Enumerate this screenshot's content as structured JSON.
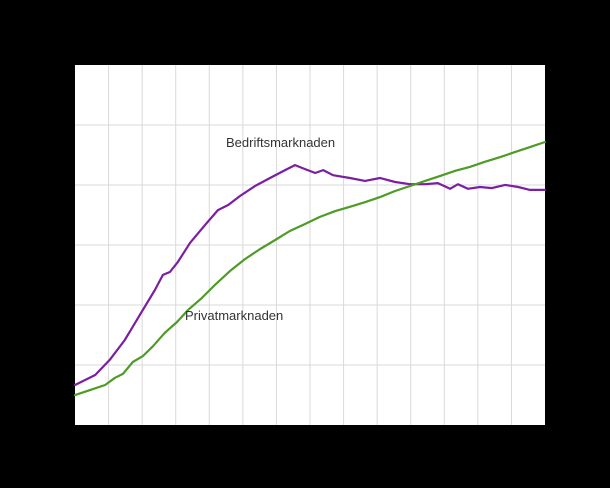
{
  "page": {
    "background_color": "#000000"
  },
  "chart_data": {
    "type": "line",
    "title": "",
    "xlabel": "",
    "ylabel": "",
    "plot_background": "#ffffff",
    "x_range": [
      0,
      100
    ],
    "y_range": [
      0,
      100
    ],
    "grid": {
      "visible": true,
      "color": "#d9d9d9",
      "v_divisions": 14,
      "h_divisions": 6
    },
    "legend_position": "inline-annotations",
    "series": [
      {
        "name": "Bedriftsmarknaden",
        "color": "#7b1fa2",
        "stroke_width": 2.2,
        "points": [
          [
            0,
            11.1
          ],
          [
            4.3,
            13.9
          ],
          [
            7.4,
            18.1
          ],
          [
            10.6,
            23.6
          ],
          [
            13.8,
            30.6
          ],
          [
            17.0,
            37.5
          ],
          [
            18.7,
            41.7
          ],
          [
            20.2,
            42.5
          ],
          [
            21.9,
            45.3
          ],
          [
            24.5,
            50.6
          ],
          [
            27.7,
            55.6
          ],
          [
            30.4,
            59.7
          ],
          [
            32.6,
            61.1
          ],
          [
            35.1,
            63.6
          ],
          [
            38.3,
            66.4
          ],
          [
            41.5,
            68.6
          ],
          [
            44.7,
            70.8
          ],
          [
            46.8,
            72.2
          ],
          [
            48.9,
            71.1
          ],
          [
            51.1,
            70.0
          ],
          [
            52.8,
            70.8
          ],
          [
            54.9,
            69.4
          ],
          [
            58.5,
            68.6
          ],
          [
            61.7,
            67.8
          ],
          [
            64.9,
            68.6
          ],
          [
            68.1,
            67.5
          ],
          [
            71.3,
            66.9
          ],
          [
            74.5,
            66.9
          ],
          [
            77.2,
            67.2
          ],
          [
            79.8,
            65.6
          ],
          [
            81.5,
            66.9
          ],
          [
            83.6,
            65.6
          ],
          [
            86.2,
            66.1
          ],
          [
            88.7,
            65.8
          ],
          [
            91.5,
            66.7
          ],
          [
            94.3,
            66.1
          ],
          [
            96.8,
            65.3
          ],
          [
            100,
            65.3
          ]
        ]
      },
      {
        "name": "Privatmarknaden",
        "color": "#4f9b27",
        "stroke_width": 2.2,
        "points": [
          [
            0,
            8.3
          ],
          [
            3.2,
            9.7
          ],
          [
            6.4,
            11.1
          ],
          [
            8.5,
            13.1
          ],
          [
            10.2,
            14.2
          ],
          [
            12.3,
            17.5
          ],
          [
            14.5,
            19.2
          ],
          [
            16.6,
            21.9
          ],
          [
            19.1,
            25.6
          ],
          [
            21.7,
            28.6
          ],
          [
            24.0,
            31.9
          ],
          [
            27.0,
            35.3
          ],
          [
            30.0,
            39.2
          ],
          [
            33.0,
            42.8
          ],
          [
            36.2,
            46.1
          ],
          [
            39.4,
            48.9
          ],
          [
            42.6,
            51.4
          ],
          [
            45.7,
            53.9
          ],
          [
            48.9,
            55.8
          ],
          [
            52.1,
            57.8
          ],
          [
            55.3,
            59.4
          ],
          [
            58.5,
            60.6
          ],
          [
            61.7,
            61.9
          ],
          [
            64.9,
            63.3
          ],
          [
            68.1,
            65.0
          ],
          [
            71.3,
            66.4
          ],
          [
            74.5,
            67.8
          ],
          [
            77.7,
            69.2
          ],
          [
            80.9,
            70.6
          ],
          [
            84.0,
            71.7
          ],
          [
            87.2,
            73.1
          ],
          [
            90.4,
            74.4
          ],
          [
            93.6,
            75.8
          ],
          [
            96.8,
            77.2
          ],
          [
            100,
            78.6
          ]
        ]
      }
    ]
  }
}
